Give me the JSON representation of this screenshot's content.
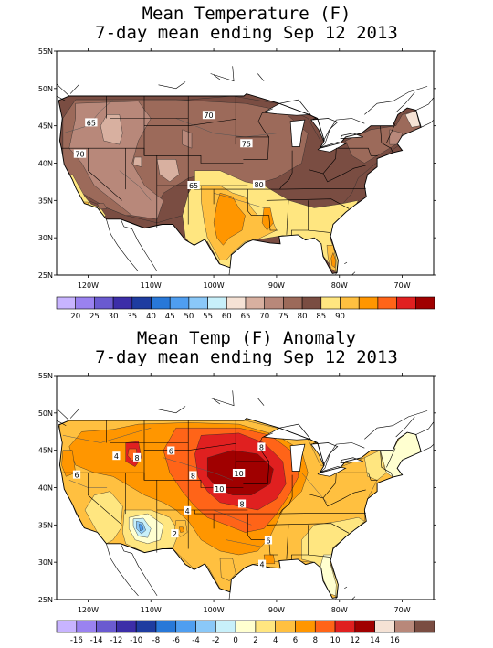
{
  "maps": [
    {
      "title_line1": "Mean Temperature (F)",
      "title_line2": "7-day mean ending Sep 12 2013",
      "lat_labels": [
        "55N",
        "50N",
        "45N",
        "40N",
        "35N",
        "30N",
        "25N"
      ],
      "lon_labels": [
        "120W",
        "110W",
        "100W",
        "90W",
        "80W",
        "70W"
      ],
      "contour_labels": [
        {
          "text": "65",
          "lon": -119.5,
          "lat": 45.4
        },
        {
          "text": "70",
          "lon": -121.3,
          "lat": 41.2
        },
        {
          "text": "70",
          "lon": -100.8,
          "lat": 46.4
        },
        {
          "text": "75",
          "lon": -94.8,
          "lat": 42.6
        },
        {
          "text": "65",
          "lon": -103.2,
          "lat": 37.0
        },
        {
          "text": "80",
          "lon": -92.8,
          "lat": 37.1
        }
      ],
      "colorbar": {
        "colors": [
          "#c8b4ff",
          "#9a82f0",
          "#6a5ad0",
          "#3c2ea8",
          "#1e3ca0",
          "#2878d8",
          "#4f9ef0",
          "#8ac8f8",
          "#c8f0fa",
          "#f5e2d5",
          "#d8b0a0",
          "#b8887a",
          "#9c6a5a",
          "#7a4d42",
          "#ffe680",
          "#ffc040",
          "#ff9600",
          "#ff6418",
          "#e02020",
          "#a00000"
        ],
        "labels": [
          "20",
          "25",
          "30",
          "35",
          "40",
          "45",
          "50",
          "55",
          "60",
          "65",
          "70",
          "75",
          "80",
          "85",
          "90"
        ]
      }
    },
    {
      "title_line1": "Mean Temp (F) Anomaly",
      "title_line2": "7-day mean ending Sep 12 2013",
      "lat_labels": [
        "55N",
        "50N",
        "45N",
        "40N",
        "35N",
        "30N",
        "25N"
      ],
      "lon_labels": [
        "120W",
        "110W",
        "100W",
        "90W",
        "80W",
        "70W"
      ],
      "contour_labels": [
        {
          "text": "4",
          "lon": -115.5,
          "lat": 44.2
        },
        {
          "text": "6",
          "lon": -121.8,
          "lat": 41.7
        },
        {
          "text": "8",
          "lon": -112.2,
          "lat": 44.0
        },
        {
          "text": "6",
          "lon": -106.8,
          "lat": 44.9
        },
        {
          "text": "8",
          "lon": -103.3,
          "lat": 41.6
        },
        {
          "text": "8",
          "lon": -92.4,
          "lat": 45.4
        },
        {
          "text": "10",
          "lon": -96.0,
          "lat": 41.9
        },
        {
          "text": "10",
          "lon": -99.1,
          "lat": 39.8
        },
        {
          "text": "8",
          "lon": -95.5,
          "lat": 37.8
        },
        {
          "text": "6",
          "lon": -91.3,
          "lat": 32.9
        },
        {
          "text": "4",
          "lon": -104.2,
          "lat": 36.9
        },
        {
          "text": "2",
          "lon": -106.2,
          "lat": 33.8
        },
        {
          "text": "4",
          "lon": -92.3,
          "lat": 29.7
        }
      ],
      "colorbar": {
        "colors": [
          "#c8b4ff",
          "#9a82f0",
          "#6a5ad0",
          "#3c2ea8",
          "#1e3ca0",
          "#2878d8",
          "#4f9ef0",
          "#8ac8f8",
          "#c8f0fa",
          "#ffffd0",
          "#ffe680",
          "#ffc040",
          "#ff9600",
          "#ff6418",
          "#e02020",
          "#a00000",
          "#f5e2d5",
          "#b8887a",
          "#7a4d42"
        ],
        "labels": [
          "-16",
          "-14",
          "-12",
          "-10",
          "-8",
          "-6",
          "-4",
          "-2",
          "0",
          "2",
          "4",
          "6",
          "8",
          "10",
          "12",
          "14",
          "16"
        ]
      }
    }
  ]
}
